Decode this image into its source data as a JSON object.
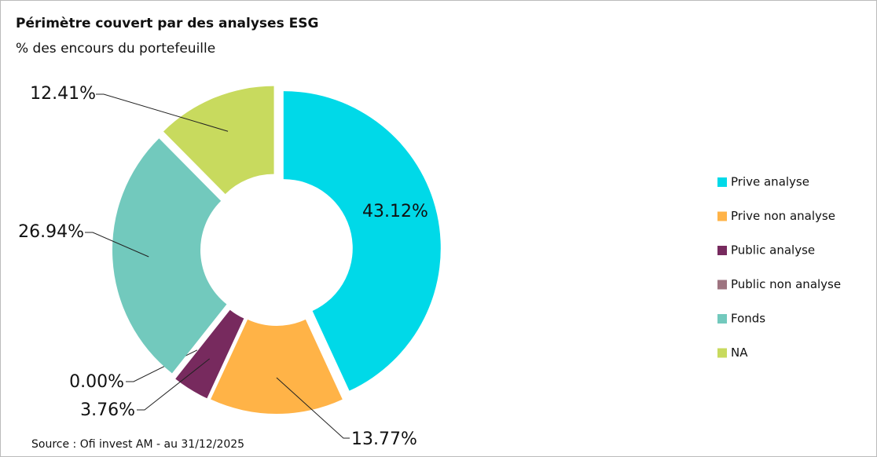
{
  "chart_data": {
    "type": "donut",
    "title": "Périmètre couvert par des analyses ESG",
    "subtitle": "% des encours du portefeuille",
    "source": "Source : Ofi invest AM - au 31/12/2025",
    "categories": [
      "Prive analyse",
      "Prive non analyse",
      "Public analyse",
      "Public non analyse",
      "Fonds",
      "NA"
    ],
    "values": [
      43.12,
      13.77,
      3.76,
      0.0,
      26.94,
      12.41
    ],
    "value_labels": [
      "43.12%",
      "13.77%",
      "3.76%",
      "0.00%",
      "26.94%",
      "12.41%"
    ],
    "colors": [
      "#00d9e8",
      "#ffb347",
      "#772a5e",
      "#9e7480",
      "#72c9bd",
      "#c8da5e"
    ],
    "legend": "right"
  }
}
